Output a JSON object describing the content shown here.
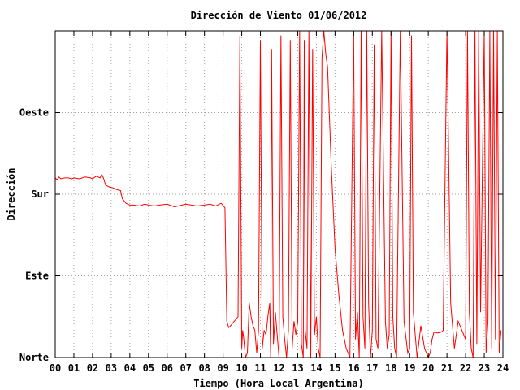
{
  "chart_data": {
    "type": "line",
    "title": "Dirección de Viento 01/06/2012",
    "xlabel": "Tiempo (Hora Local Argentina)",
    "ylabel": "Dirección",
    "xlim": [
      0,
      24
    ],
    "ylim": [
      0,
      360
    ],
    "x_ticks": [
      0,
      1,
      2,
      3,
      4,
      5,
      6,
      7,
      8,
      9,
      10,
      11,
      12,
      13,
      14,
      15,
      16,
      17,
      18,
      19,
      20,
      21,
      22,
      23,
      24
    ],
    "x_tick_labels": [
      "00",
      "01",
      "02",
      "03",
      "04",
      "05",
      "06",
      "07",
      "08",
      "09",
      "10",
      "11",
      "12",
      "13",
      "14",
      "15",
      "16",
      "17",
      "18",
      "19",
      "20",
      "21",
      "22",
      "23",
      "24"
    ],
    "y_ticks": [
      0,
      90,
      180,
      270
    ],
    "y_tick_labels": [
      "Norte",
      "Este",
      "Sur",
      "Oeste"
    ],
    "grid": true,
    "series": [
      {
        "color": "#ff0000",
        "x": [
          0.0,
          0.1,
          0.2,
          0.3,
          0.5,
          0.7,
          0.9,
          1.0,
          1.3,
          1.6,
          1.9,
          2.0,
          2.2,
          2.4,
          2.5,
          2.6,
          2.7,
          2.9,
          3.1,
          3.3,
          3.5,
          3.6,
          3.8,
          4.0,
          4.2,
          4.5,
          4.8,
          5.0,
          5.3,
          5.6,
          6.0,
          6.4,
          6.8,
          7.0,
          7.3,
          7.6,
          8.0,
          8.3,
          8.6,
          8.9,
          9.1,
          9.2,
          9.3,
          9.4,
          9.6,
          9.8,
          9.9,
          10.0,
          10.05,
          10.1,
          10.2,
          10.3,
          10.4,
          10.5,
          10.6,
          10.7,
          10.8,
          10.9,
          11.0,
          11.1,
          11.2,
          11.3,
          11.4,
          11.5,
          11.55,
          11.6,
          11.7,
          11.8,
          12.0,
          12.1,
          12.2,
          12.3,
          12.4,
          12.5,
          12.6,
          12.7,
          12.8,
          12.9,
          13.0,
          13.1,
          13.2,
          13.3,
          13.35,
          13.4,
          13.5,
          13.6,
          13.7,
          13.8,
          13.9,
          14.0,
          14.1,
          14.2,
          14.3,
          14.4,
          14.5,
          14.6,
          14.8,
          15.0,
          15.2,
          15.4,
          15.6,
          15.8,
          16.0,
          16.1,
          16.2,
          16.3,
          16.4,
          16.5,
          16.6,
          16.7,
          16.8,
          16.9,
          17.0,
          17.1,
          17.2,
          17.3,
          17.5,
          17.7,
          17.8,
          17.9,
          18.0,
          18.1,
          18.2,
          18.3,
          18.5,
          18.7,
          18.9,
          19.0,
          19.1,
          19.2,
          19.4,
          19.6,
          19.8,
          20.0,
          20.1,
          20.2,
          20.3,
          20.5,
          20.7,
          20.8,
          21.0,
          21.2,
          21.4,
          21.6,
          21.8,
          22.0,
          22.1,
          22.2,
          22.3,
          22.4,
          22.5,
          22.6,
          22.7,
          22.8,
          23.0,
          23.1,
          23.2,
          23.3,
          23.4,
          23.5,
          23.6,
          23.7,
          23.8,
          23.9
        ],
        "y": [
          198,
          196,
          199,
          197,
          198,
          198,
          197,
          198,
          197,
          199,
          198,
          197,
          200,
          198,
          202,
          197,
          190,
          188,
          187,
          185,
          184,
          175,
          170,
          168,
          168,
          167,
          169,
          168,
          167,
          168,
          169,
          166,
          168,
          169,
          168,
          167,
          168,
          169,
          167,
          170,
          165,
          40,
          33,
          35,
          40,
          45,
          355,
          10,
          30,
          22,
          0,
          5,
          60,
          45,
          35,
          30,
          5,
          30,
          350,
          10,
          30,
          25,
          45,
          60,
          0,
          340,
          15,
          50,
          0,
          355,
          45,
          20,
          0,
          30,
          350,
          10,
          40,
          25,
          40,
          360,
          15,
          0,
          350,
          30,
          10,
          360,
          0,
          340,
          25,
          45,
          10,
          0,
          330,
          360,
          335,
          320,
          210,
          120,
          70,
          30,
          10,
          0,
          360,
          20,
          50,
          0,
          360,
          45,
          10,
          360,
          60,
          0,
          30,
          345,
          20,
          10,
          360,
          40,
          10,
          25,
          360,
          45,
          10,
          0,
          360,
          40,
          5,
          10,
          355,
          50,
          0,
          35,
          10,
          0,
          5,
          20,
          28,
          27,
          28,
          30,
          360,
          60,
          10,
          40,
          30,
          20,
          360,
          50,
          10,
          0,
          360,
          15,
          360,
          50,
          360,
          5,
          40,
          360,
          10,
          360,
          20,
          360,
          5,
          30
        ]
      }
    ]
  }
}
